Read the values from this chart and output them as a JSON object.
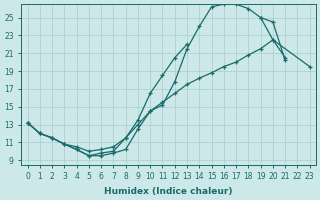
{
  "xlabel": "Humidex (Indice chaleur)",
  "bg_color": "#cce8e8",
  "grid_color": "#aacccc",
  "line_color": "#1a6b6b",
  "xlim": [
    -0.5,
    23.5
  ],
  "ylim": [
    8.5,
    26.5
  ],
  "xticks": [
    0,
    1,
    2,
    3,
    4,
    5,
    6,
    7,
    8,
    9,
    10,
    11,
    12,
    13,
    14,
    15,
    16,
    17,
    18,
    19,
    20,
    21,
    22,
    23
  ],
  "yticks": [
    9,
    11,
    13,
    15,
    17,
    19,
    21,
    23,
    25
  ],
  "line1_x": [
    0,
    1,
    2,
    3,
    4,
    5,
    6,
    7,
    8,
    9,
    10,
    11,
    12,
    13,
    14,
    15,
    16,
    17,
    18,
    19,
    20,
    21
  ],
  "line1_y": [
    13.2,
    12.0,
    11.5,
    10.8,
    10.2,
    9.5,
    9.5,
    9.8,
    10.2,
    12.5,
    14.5,
    15.2,
    17.8,
    21.5,
    24.0,
    26.2,
    26.5,
    26.5,
    26.0,
    25.0,
    22.5,
    20.5
  ],
  "line2_x": [
    0,
    1,
    2,
    3,
    4,
    5,
    6,
    7,
    8,
    9,
    10,
    11,
    12,
    13,
    14,
    15,
    16,
    17,
    18,
    19,
    20,
    21,
    22,
    23
  ],
  "line2_y": [
    13.2,
    12.0,
    11.5,
    10.8,
    10.5,
    10.0,
    10.2,
    10.5,
    11.5,
    13.0,
    14.5,
    15.5,
    16.5,
    17.5,
    18.2,
    18.8,
    19.5,
    20.0,
    20.8,
    21.5,
    22.5,
    null,
    null,
    19.5
  ],
  "line3_x": [
    0,
    1,
    2,
    3,
    4,
    5,
    6,
    7,
    8,
    9,
    10,
    11,
    12,
    13,
    14,
    15,
    16,
    17,
    18,
    19,
    20,
    21
  ],
  "line3_y": [
    13.2,
    12.0,
    11.5,
    10.8,
    10.2,
    9.5,
    9.8,
    10.0,
    11.5,
    13.5,
    16.5,
    18.5,
    20.5,
    22.0,
    23.5,
    null,
    null,
    null,
    null,
    25.0,
    24.5,
    20.2
  ]
}
